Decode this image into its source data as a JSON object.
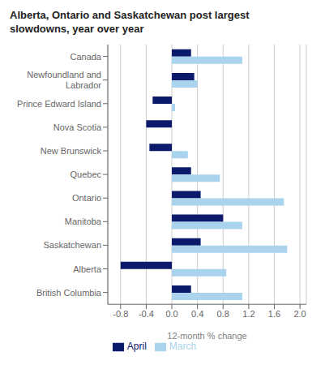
{
  "chart_data": {
    "type": "bar",
    "orientation": "horizontal",
    "title": "Alberta, Ontario and Saskatchewan post largest\nslowdowns, year over year",
    "x_label": "12-month % change",
    "categories": [
      "Canada",
      "Newfoundland and\nLabrador",
      "Prince Edward Island",
      "Nova Scotia",
      "New Brunswick",
      "Quebec",
      "Ontario",
      "Manitoba",
      "Saskatchewan",
      "Alberta",
      "British Columbia"
    ],
    "series": [
      {
        "name": "April",
        "color": "#0c1a6b",
        "values": [
          0.3,
          0.35,
          -0.3,
          -0.4,
          -0.35,
          0.3,
          0.45,
          0.8,
          0.45,
          -0.8,
          0.3
        ]
      },
      {
        "name": "March",
        "color": "#aad4ed",
        "values": [
          1.1,
          0.4,
          0.05,
          0.0,
          0.25,
          0.75,
          1.75,
          1.1,
          1.8,
          0.85,
          1.1
        ]
      }
    ],
    "xlim": [
      -1.0,
      2.1
    ],
    "xticks": [
      -0.8,
      -0.4,
      {
        "value": 0.0,
        "label": "0.0"
      },
      0.4,
      0.8,
      1.2,
      1.6,
      {
        "value": 2.0,
        "label": "2.0"
      }
    ],
    "grid": true,
    "legend": "bottom"
  }
}
